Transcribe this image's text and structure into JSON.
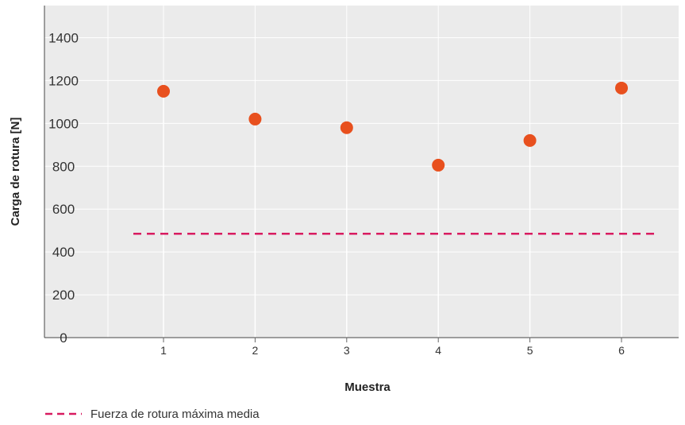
{
  "chart_data": {
    "type": "scatter",
    "xlabel": "Muestra",
    "ylabel": "Carga de rotura [N]",
    "x": [
      1,
      2,
      3,
      4,
      5,
      6
    ],
    "x_ticks": [
      "1",
      "2",
      "3",
      "4",
      "5",
      "6"
    ],
    "y_ticks": [
      "0",
      "200",
      "400",
      "600",
      "800",
      "1000",
      "1200",
      "1400"
    ],
    "ylim": [
      0,
      1550
    ],
    "grid": true,
    "series": [
      {
        "values": [
          1150,
          1020,
          980,
          805,
          920,
          1165
        ],
        "color": "#e8501e"
      }
    ],
    "reference_line": {
      "name": "Fuerza de rotura máxima media",
      "value": 485,
      "color": "#d81b60",
      "style": "dashed"
    },
    "legend": {
      "position": "bottom-left",
      "entries": [
        "Fuerza de rotura máxima media"
      ]
    },
    "plot_background": "#ebebeb"
  }
}
